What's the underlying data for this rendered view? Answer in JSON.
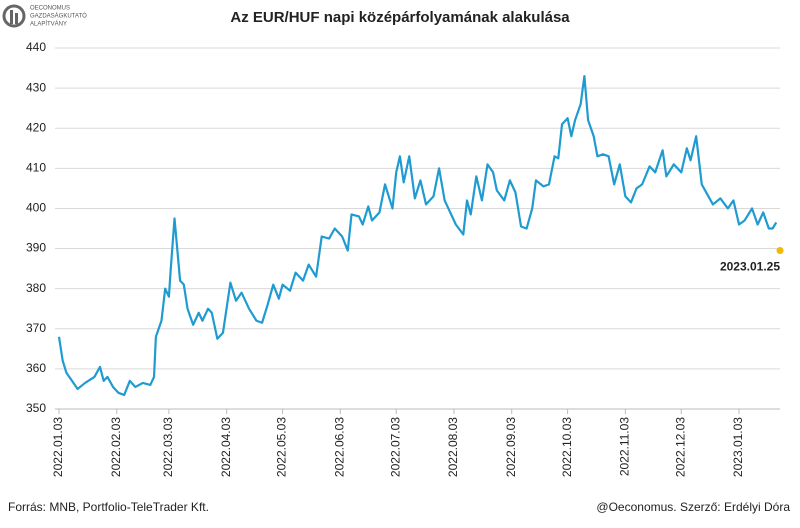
{
  "logo": [
    "OECONOMUS",
    "GAZDASÁGKUTATÓ",
    "ALAPÍTVÁNY"
  ],
  "chart_data": {
    "type": "line",
    "title": "Az EUR/HUF napi középárfolyamának alakulása",
    "x": [
      "2022.01.03",
      "2022.01.05",
      "2022.01.07",
      "2022.01.10",
      "2022.01.13",
      "2022.01.17",
      "2022.01.22",
      "2022.01.25",
      "2022.01.27",
      "2022.01.29",
      "2022.02.01",
      "2022.02.04",
      "2022.02.07",
      "2022.02.10",
      "2022.02.13",
      "2022.02.17",
      "2022.02.21",
      "2022.02.23",
      "2022.02.24",
      "2022.02.27",
      "2022.03.01",
      "2022.03.03",
      "2022.03.04",
      "2022.03.06",
      "2022.03.09",
      "2022.03.11",
      "2022.03.13",
      "2022.03.16",
      "2022.03.19",
      "2022.03.21",
      "2022.03.24",
      "2022.03.26",
      "2022.03.29",
      "2022.04.01",
      "2022.04.05",
      "2022.04.08",
      "2022.04.11",
      "2022.04.15",
      "2022.04.19",
      "2022.04.22",
      "2022.04.25",
      "2022.04.28",
      "2022.05.01",
      "2022.05.03",
      "2022.05.07",
      "2022.05.10",
      "2022.05.14",
      "2022.05.17",
      "2022.05.21",
      "2022.05.24",
      "2022.05.28",
      "2022.05.31",
      "2022.06.04",
      "2022.06.07",
      "2022.06.09",
      "2022.06.13",
      "2022.06.15",
      "2022.06.18",
      "2022.06.20",
      "2022.06.24",
      "2022.06.27",
      "2022.07.01",
      "2022.07.03",
      "2022.07.05",
      "2022.07.07",
      "2022.07.10",
      "2022.07.13",
      "2022.07.16",
      "2022.07.19",
      "2022.07.23",
      "2022.07.26",
      "2022.07.29",
      "2022.08.01",
      "2022.08.04",
      "2022.08.08",
      "2022.08.10",
      "2022.08.12",
      "2022.08.15",
      "2022.08.18",
      "2022.08.21",
      "2022.08.24",
      "2022.08.26",
      "2022.08.30",
      "2022.09.02",
      "2022.09.05",
      "2022.09.08",
      "2022.09.11",
      "2022.09.14",
      "2022.09.16",
      "2022.09.20",
      "2022.09.23",
      "2022.09.26",
      "2022.09.28",
      "2022.09.30",
      "2022.10.03",
      "2022.10.05",
      "2022.10.07",
      "2022.10.10",
      "2022.10.12",
      "2022.10.14",
      "2022.10.17",
      "2022.10.19",
      "2022.10.22",
      "2022.10.25",
      "2022.10.28",
      "2022.10.31",
      "2022.11.03",
      "2022.11.06",
      "2022.11.09",
      "2022.11.12",
      "2022.11.16",
      "2022.11.19",
      "2022.11.23",
      "2022.11.25",
      "2022.11.29",
      "2022.12.03",
      "2022.12.06",
      "2022.12.08",
      "2022.12.11",
      "2022.12.14",
      "2022.12.17",
      "2022.12.20",
      "2022.12.24",
      "2022.12.28",
      "2022.12.31",
      "2023.01.03",
      "2023.01.06",
      "2023.01.10",
      "2023.01.13",
      "2023.01.16",
      "2023.01.19",
      "2023.01.21",
      "2023.01.23"
    ],
    "series": [
      {
        "name": "EUR/HUF",
        "color": "#1f9bd1",
        "values": [
          368,
          362,
          359,
          357,
          355,
          356.5,
          358,
          360.5,
          357,
          358,
          355.5,
          354,
          353.5,
          357,
          355.5,
          356.5,
          356,
          358,
          368,
          372,
          380,
          378,
          385,
          397.5,
          382,
          381,
          375,
          371,
          374,
          372,
          375,
          374,
          367.5,
          369,
          381.5,
          377,
          379,
          375,
          372,
          371.5,
          376,
          381,
          377.5,
          381,
          379.5,
          384,
          382,
          386,
          383,
          393,
          392.5,
          395,
          393,
          389.5,
          398.5,
          398,
          396,
          400.5,
          397,
          399,
          406,
          400,
          409,
          413,
          406.5,
          413,
          402.5,
          407,
          401,
          403,
          410,
          402,
          399,
          396,
          393.5,
          402,
          398.5,
          408,
          402,
          411,
          409,
          404.5,
          402,
          407,
          404,
          395.5,
          395,
          400,
          407,
          405.5,
          406,
          413,
          412.5,
          421,
          422.5,
          418,
          422,
          426,
          433,
          422,
          418,
          413,
          413.5,
          413,
          406,
          411,
          403,
          401.5,
          405,
          406,
          410.5,
          409,
          414.5,
          408,
          411,
          409,
          415,
          412,
          418,
          406,
          403.5,
          401,
          402.5,
          400,
          402,
          396,
          397,
          400,
          396,
          399,
          395,
          395,
          396.5
        ]
      }
    ],
    "highlight": {
      "x": "2023.01.25",
      "value": 389.5,
      "color": "#f5b800"
    },
    "xlim": [
      "2022.01.03",
      "2023.01.25"
    ],
    "xticks": [
      "2022.01.03",
      "2022.02.03",
      "2022.03.03",
      "2022.04.03",
      "2022.05.03",
      "2022.06.03",
      "2022.07.03",
      "2022.08.03",
      "2022.09.03",
      "2022.10.03",
      "2022.11.03",
      "2022.12.03",
      "2023.01.03"
    ],
    "ylim": [
      350,
      440
    ],
    "yticks": [
      350,
      360,
      370,
      380,
      390,
      400,
      410,
      420,
      430,
      440
    ],
    "grid": true,
    "source": "Forrás: MNB, Portfolio-TeleTrader Kft.",
    "credit": "@Oeconomus. Szerző: Erdélyi Dóra"
  }
}
